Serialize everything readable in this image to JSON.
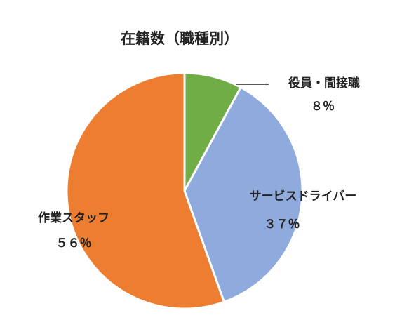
{
  "chart_data": {
    "type": "pie",
    "title": "在籍数（職種別）",
    "slices": [
      {
        "name": "役員・間接職",
        "percent_label": "８％",
        "value": 8,
        "color": "#70AD47"
      },
      {
        "name": "サービスドライバー",
        "percent_label": "３７％",
        "value": 37,
        "color": "#8FAADC"
      },
      {
        "name": "作業スタッフ",
        "percent_label": "５６％",
        "value": 56,
        "color": "#ED7D31"
      }
    ],
    "legend": "none",
    "start_angle": "12 o'clock",
    "direction": "clockwise"
  }
}
